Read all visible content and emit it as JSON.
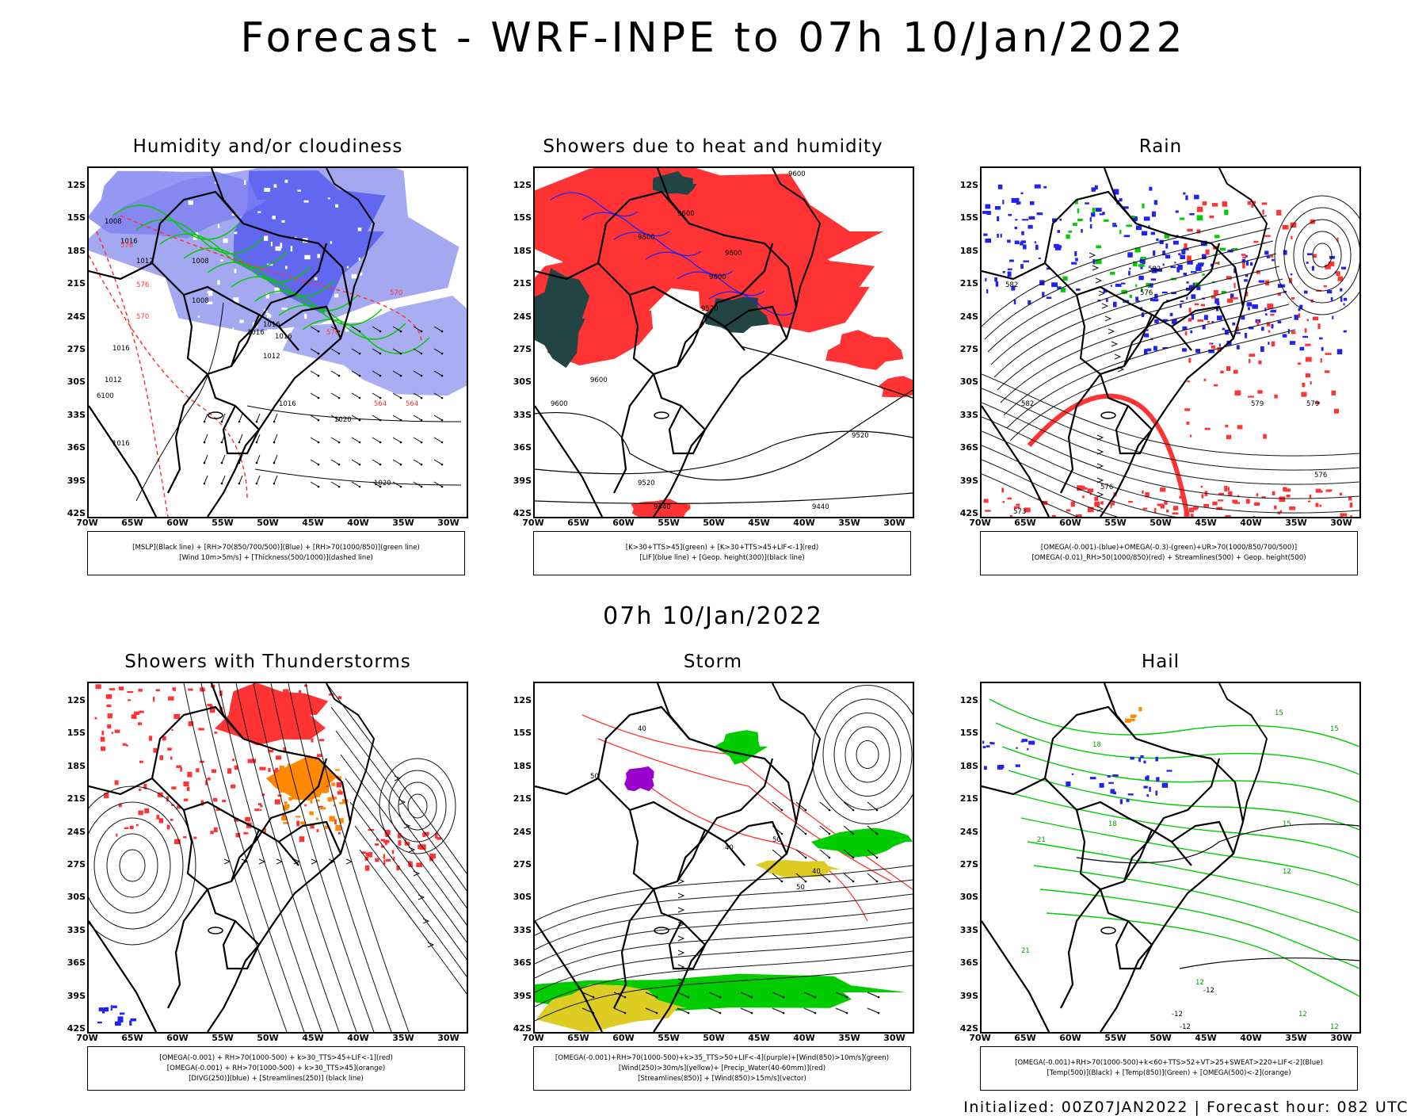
{
  "header": {
    "title": "Forecast - WRF-INPE to 07h 10/Jan/2022",
    "valid_time": "07h 10/Jan/2022"
  },
  "footer": {
    "text": "Initialized: 00Z07JAN2022 | Forecast hour: 082 UTC"
  },
  "axes": {
    "lat_labels": [
      "12S",
      "15S",
      "18S",
      "21S",
      "24S",
      "27S",
      "30S",
      "33S",
      "36S",
      "39S",
      "42S"
    ],
    "lon_labels": [
      "70W",
      "65W",
      "60W",
      "55W",
      "50W",
      "45W",
      "40W",
      "35W",
      "30W"
    ]
  },
  "colors": {
    "blue": "#2222ee",
    "light_blue": "#9a9ff0",
    "green": "#00cc00",
    "red": "#ff3333",
    "orange": "#ff8800",
    "purple": "#9900cc",
    "yellow": "#ddcc22",
    "dark_teal": "#224444"
  },
  "panels": [
    {
      "title": "Humidity and/or cloudiness",
      "legend": [
        "[MSLP](Black line) + [RH>70(850/700/500)](Blue) + [RH>70(1000/850)](green line)",
        "[Wind 10m>5m/s] + [Thickness(500/1000)](dashed line)"
      ],
      "contour_labels": [
        "1008",
        "1016",
        "1012",
        "1008",
        "1008",
        "1016",
        "1016",
        "1012",
        "1016",
        "1012",
        "1016",
        "1016",
        "1020",
        "1020",
        "576",
        "570",
        "576",
        "570",
        "564",
        "570",
        "564",
        "6100",
        "1016"
      ]
    },
    {
      "title": "Showers due to heat and humidity",
      "legend": [
        "[K>30+TTS>45](green) + [K>30+TTS>45+LIF<-1](red)",
        "[LIF](blue line) + [Geop. height(300)](black line)"
      ],
      "contour_labels": [
        "9600",
        "9600",
        "9600",
        "9520",
        "9600",
        "9600",
        "9600",
        "9520",
        "9440",
        "9440",
        "9520",
        "9600"
      ]
    },
    {
      "title": "Rain",
      "legend": [
        "[OMEGA(-0.001)-(blue)+OMEGA(-0.3)-(green)+UR>70(1000/850/700/500)]",
        "[OMEGA(-0.01)_RH>50(1000/850)(red) + Streamlines(500) + Geop. height(500)"
      ],
      "contour_labels": [
        "582",
        "576",
        "582",
        "579",
        "576",
        "576",
        "573",
        "579",
        "582"
      ]
    },
    {
      "title": "Showers with Thunderstorms",
      "legend": [
        "[OMEGA(-0.001) + RH>70(1000-500) + k>30_TTS>45+LIF<-1](red)",
        "[OMEGA(-0.001) + RH>70(1000-500) + k>30_TTS>45](orange)",
        "[DIVG(250)](blue) + [Streamlines(250)] (black line)"
      ],
      "contour_labels": []
    },
    {
      "title": "Storm",
      "legend": [
        "[OMEGA(-0.001)+RH>70(1000-500)+k>35_TTS>50+LIF<-4](purple)+[Wind(850)>10m/s](green)",
        "[Wind(250)>30m/s](yellow)+ [Precip_Water(40-60mm)](red)",
        "[Streamlines(850)] + [Wind(850)>15m/s](vector)"
      ],
      "contour_labels": [
        "40",
        "50",
        "40",
        "50",
        "50",
        "40"
      ]
    },
    {
      "title": "Hail",
      "legend": [
        "[OMEGA(-0.001)+RH>70(1000-500)+k<60+TTS>52+VT>25+SWEAT>220+LIF<-2](Blue)",
        "[Temp(500)](Black) + [Temp(850)](Green) + [OMEGA(500)<-2](orange)"
      ],
      "contour_labels": [
        "15",
        "15",
        "18",
        "21",
        "18",
        "15",
        "12",
        "12",
        "-12",
        "12",
        "-12",
        "12",
        "21",
        "-12"
      ]
    }
  ]
}
